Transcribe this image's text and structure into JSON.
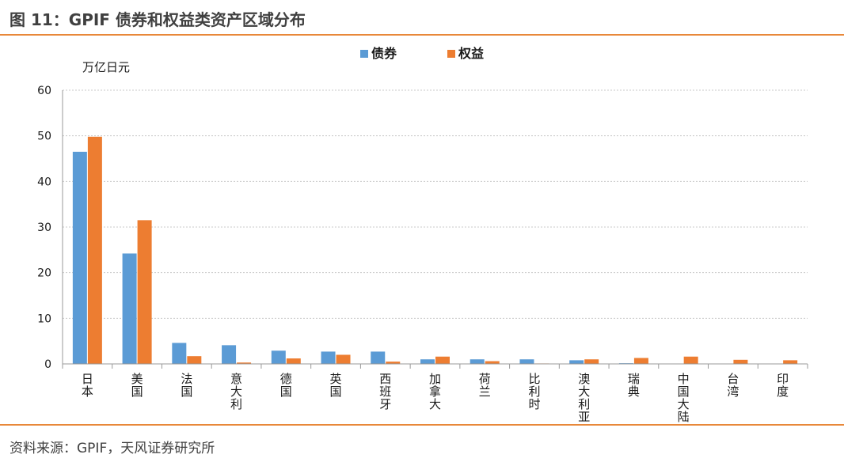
{
  "figure": {
    "title": "图 11：GPIF 债券和权益类资产区域分布",
    "source": "资料来源：GPIF，天风证券研究所"
  },
  "chart_data": {
    "type": "bar",
    "ylabel": "万亿日元",
    "ylim": [
      0,
      60
    ],
    "yticks": [
      0,
      10,
      20,
      30,
      40,
      50,
      60
    ],
    "grid": true,
    "legend_position": "top-center",
    "categories": [
      "日本",
      "美国",
      "法国",
      "意大利",
      "德国",
      "英国",
      "西班牙",
      "加拿大",
      "荷兰",
      "比利时",
      "澳大利亚",
      "瑞典",
      "中国大陆",
      "台湾",
      "印度"
    ],
    "series": [
      {
        "name": "债券",
        "color": "#5b9bd5",
        "values": [
          46.5,
          24.2,
          4.6,
          4.1,
          2.9,
          2.7,
          2.7,
          1.0,
          1.0,
          1.0,
          0.8,
          0.15,
          0,
          0,
          0
        ]
      },
      {
        "name": "权益",
        "color": "#ed7d31",
        "values": [
          49.8,
          31.5,
          1.7,
          0.3,
          1.2,
          2.0,
          0.5,
          1.6,
          0.6,
          0.1,
          1.0,
          1.3,
          1.6,
          0.9,
          0.8
        ]
      }
    ]
  }
}
